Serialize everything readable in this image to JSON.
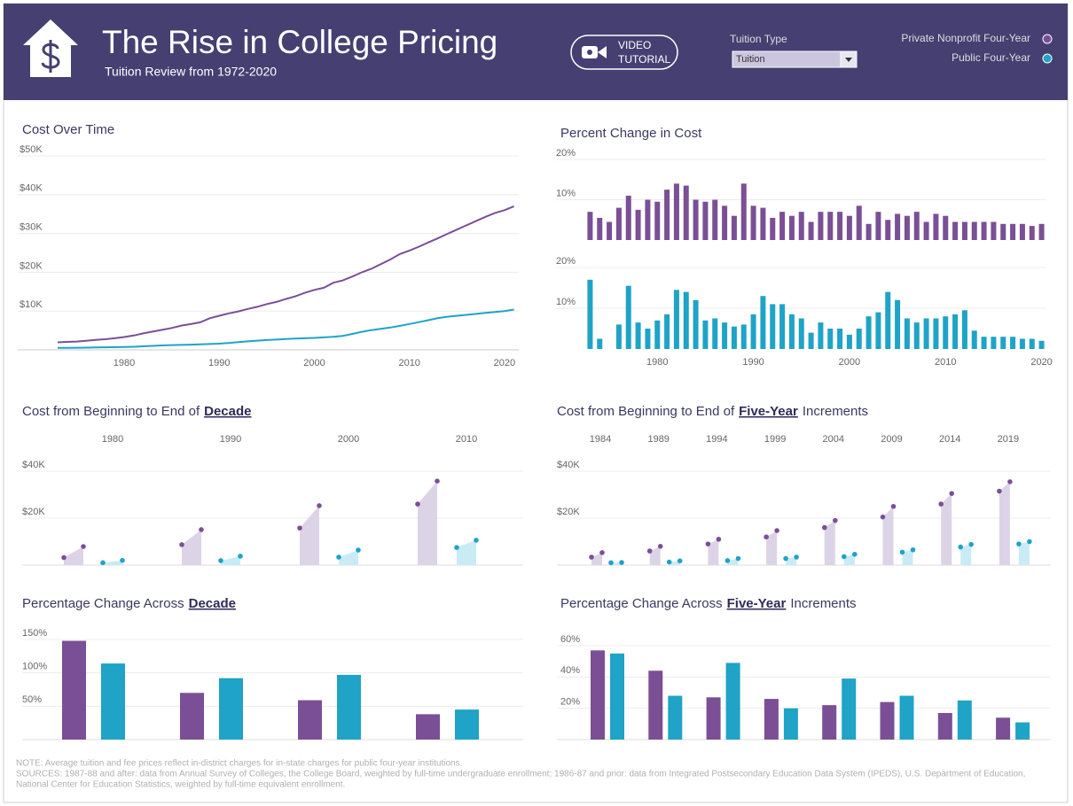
{
  "header": {
    "title": "The Rise in College Pricing",
    "subtitle": "Tuition Review from 1972-2020",
    "button_lines": [
      "VIDEO",
      "TUTORIAL"
    ],
    "filter_label": "Tuition Type",
    "filter_value": "Tuition"
  },
  "notes": [
    "NOTE: Average tuition and fee prices reflect in-district charges for in-state charges for public four-year institutions.",
    "SOURCES: 1987-88 and after: data from Annual Survey of Colleges, the College Board, weighted by full-time undergraduate enrollment; 1986-87 and prior: data from Integrated Postsecondary Education Data System (IPEDS), U.S. Department of Education,",
    "National Center for Education Statistics, weighted by full-time equivalent enrollment."
  ],
  "chart_data": [
    {
      "type": "line",
      "title": "Cost Over Time",
      "x": [
        1973,
        1974,
        1975,
        1976,
        1977,
        1978,
        1979,
        1980,
        1981,
        1982,
        1983,
        1984,
        1985,
        1986,
        1987,
        1988,
        1989,
        1990,
        1991,
        1992,
        1993,
        1994,
        1995,
        1996,
        1997,
        1998,
        1999,
        2000,
        2001,
        2002,
        2003,
        2004,
        2005,
        2006,
        2007,
        2008,
        2009,
        2010,
        2011,
        2012,
        2013,
        2014,
        2015,
        2016,
        2017,
        2018,
        2019,
        2020,
        2021
      ],
      "series": [
        {
          "name": "Private Nonprofit Four-Year",
          "color": "#7b4f96",
          "values": [
            1950,
            2050,
            2150,
            2350,
            2550,
            2750,
            3000,
            3300,
            3700,
            4250,
            4700,
            5150,
            5650,
            6250,
            6650,
            7100,
            8150,
            8800,
            9400,
            9900,
            10550,
            11100,
            11800,
            12350,
            13100,
            13800,
            14700,
            15450,
            16000,
            17300,
            17900,
            18900,
            20000,
            20900,
            22100,
            23300,
            24700,
            25600,
            26600,
            27700,
            28800,
            29900,
            31000,
            32100,
            33200,
            34300,
            35300,
            36000,
            37000
          ]
        },
        {
          "name": "Public Four-Year",
          "color": "#1fa3c7",
          "values": [
            500,
            510,
            540,
            580,
            620,
            660,
            690,
            740,
            800,
            910,
            1030,
            1150,
            1230,
            1280,
            1340,
            1410,
            1500,
            1600,
            1780,
            1990,
            2200,
            2380,
            2530,
            2650,
            2780,
            2890,
            2980,
            3080,
            3210,
            3360,
            3610,
            4100,
            4660,
            5090,
            5440,
            5760,
            6180,
            6660,
            7140,
            7640,
            8200,
            8550,
            8780,
            9020,
            9270,
            9510,
            9750,
            10000,
            10380
          ]
        }
      ],
      "xlim": [
        1973,
        2021.5
      ],
      "xticks": [
        1980,
        1990,
        2000,
        2010,
        2020
      ],
      "ylim": [
        0,
        50000
      ],
      "yticks": [
        {
          "value": 10000,
          "label": "$10K"
        },
        {
          "value": 20000,
          "label": "$20K"
        },
        {
          "value": 30000,
          "label": "$30K"
        },
        {
          "value": 40000,
          "label": "$40K"
        },
        {
          "value": 50000,
          "label": "$50K"
        }
      ],
      "grid": true
    },
    {
      "type": "bar",
      "title": "Percent Change in Cost",
      "x": [
        1973,
        1974,
        1975,
        1976,
        1977,
        1978,
        1979,
        1980,
        1981,
        1982,
        1983,
        1984,
        1985,
        1986,
        1987,
        1988,
        1989,
        1990,
        1991,
        1992,
        1993,
        1994,
        1995,
        1996,
        1997,
        1998,
        1999,
        2000,
        2001,
        2002,
        2003,
        2004,
        2005,
        2006,
        2007,
        2008,
        2009,
        2010,
        2011,
        2012,
        2013,
        2014,
        2015,
        2016,
        2017,
        2018,
        2019,
        2020
      ],
      "series": [
        {
          "color": "#7b4f96",
          "values": [
            7,
            5.5,
            4.5,
            8,
            11,
            7.5,
            10,
            9.5,
            12.5,
            14,
            13.5,
            10,
            9.5,
            10,
            8.5,
            6,
            14,
            8.5,
            8,
            5.5,
            7,
            6,
            7,
            4.5,
            7,
            7,
            7,
            6,
            8.5,
            4,
            7,
            5,
            6.5,
            6,
            7,
            4.5,
            6.5,
            6,
            4.5,
            4.5,
            4.5,
            4.5,
            4.5,
            4,
            4,
            4,
            3.5,
            4
          ]
        },
        {
          "color": "#1fa3c7",
          "values": [
            17,
            2.5,
            0,
            6,
            15.5,
            6.5,
            5,
            7,
            8.5,
            14.5,
            14,
            12,
            7,
            7.5,
            6.5,
            5.5,
            6,
            8.5,
            13,
            11,
            11,
            8.5,
            7.5,
            4,
            6.5,
            5,
            5,
            3.5,
            5,
            8,
            9,
            14,
            12,
            7.5,
            6.5,
            7.5,
            7.5,
            8,
            8.5,
            9.5,
            4.5,
            3,
            3,
            3,
            3,
            2.5,
            2.5,
            2
          ]
        }
      ],
      "xlim": [
        1972.5,
        2020.5
      ],
      "xticks": [
        1980,
        1990,
        2000,
        2010,
        2020
      ],
      "ylim": [
        0,
        20
      ],
      "yticks": [
        {
          "value": 10,
          "label": "10%"
        },
        {
          "value": 20,
          "label": "20%"
        }
      ],
      "grid": true
    },
    {
      "type": "range",
      "title": "Cost from Beginning to End of",
      "title_link": "Decade",
      "categories": [
        "1980",
        "1990",
        "2000",
        "2010"
      ],
      "series": [
        {
          "color": "#7b4f96",
          "area_color": "#ddd3e7",
          "start": [
            3200,
            8700,
            15800,
            26000
          ],
          "end": [
            7900,
            15100,
            25300,
            35800
          ]
        },
        {
          "color": "#1fa3c7",
          "area_color": "#c8ebf5",
          "start": [
            1000,
            1900,
            3400,
            7500
          ],
          "end": [
            2000,
            3800,
            6400,
            10600
          ]
        }
      ],
      "ylim": [
        0,
        40000
      ],
      "yticks": [
        {
          "value": 20000,
          "label": "$20K"
        },
        {
          "value": 40000,
          "label": "$40K"
        }
      ],
      "grid": true
    },
    {
      "type": "range",
      "title": "Cost from Beginning to End of",
      "title_link": "Five-Year",
      "title_end": "Increments",
      "categories": [
        "1984",
        "1989",
        "1994",
        "1999",
        "2004",
        "2009",
        "2014",
        "2019"
      ],
      "series": [
        {
          "color": "#7b4f96",
          "area_color": "#ddd3e7",
          "start": [
            3400,
            6000,
            9000,
            12000,
            16000,
            20500,
            26000,
            31500
          ],
          "end": [
            5300,
            8000,
            11000,
            14700,
            19000,
            25000,
            30500,
            35500
          ]
        },
        {
          "color": "#1fa3c7",
          "area_color": "#c8ebf5",
          "start": [
            1000,
            1300,
            1900,
            2800,
            3600,
            5500,
            7700,
            9000
          ],
          "end": [
            1100,
            1800,
            2800,
            3400,
            4600,
            6500,
            8800,
            10000
          ]
        }
      ],
      "ylim": [
        0,
        40000
      ],
      "yticks": [
        {
          "value": 20000,
          "label": "$20K"
        },
        {
          "value": 40000,
          "label": "$40K"
        }
      ],
      "grid": true
    },
    {
      "type": "grouped-bar",
      "title": "Percentage Change Across",
      "title_link": "Decade",
      "series": [
        {
          "color": "#7b4f96",
          "values": [
            148,
            70,
            59,
            38
          ]
        },
        {
          "color": "#1fa3c7",
          "values": [
            114,
            92,
            97,
            45
          ]
        }
      ],
      "ylim": [
        0,
        150
      ],
      "yticks": [
        {
          "value": 50,
          "label": "50%"
        },
        {
          "value": 100,
          "label": "100%"
        },
        {
          "value": 150,
          "label": "150%"
        }
      ],
      "grid": true
    },
    {
      "type": "grouped-bar",
      "title": "Percentage Change Across",
      "title_link": "Five-Year",
      "title_end": "Increments",
      "series": [
        {
          "color": "#7b4f96",
          "values": [
            57,
            44,
            27,
            26,
            22,
            24,
            17,
            14
          ]
        },
        {
          "color": "#1fa3c7",
          "values": [
            55,
            28,
            49,
            20,
            39,
            28,
            25,
            11
          ]
        }
      ],
      "ylim": [
        0,
        60
      ],
      "yticks": [
        {
          "value": 20,
          "label": "20%"
        },
        {
          "value": 40,
          "label": "40%"
        },
        {
          "value": 60,
          "label": "60%"
        }
      ],
      "grid": true
    }
  ]
}
